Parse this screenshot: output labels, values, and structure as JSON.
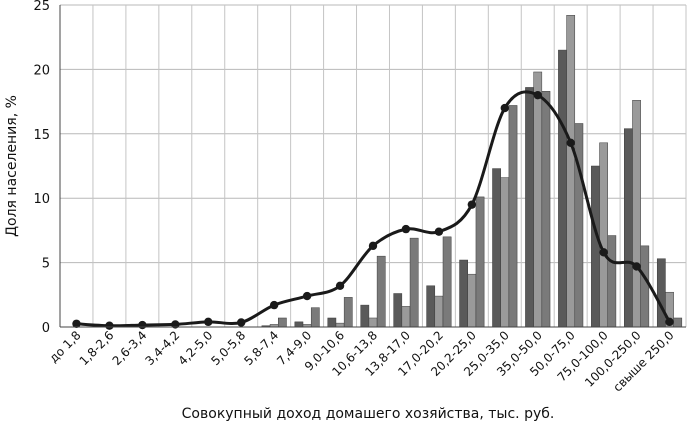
{
  "chart_data": {
    "type": "bar",
    "xlabel": "Совокупный доход домашего хозяйства, тыс. руб.",
    "ylabel": "Доля населения, %",
    "ylim": [
      0,
      25
    ],
    "yticks": [
      "0",
      "5",
      "10",
      "15",
      "20",
      "25"
    ],
    "grid": true,
    "categories": [
      "до 1,8",
      "1,8-2,6",
      "2,6-3,4",
      "3,4-4,2",
      "4,2-5,0",
      "5,0-5,8",
      "5,8-7,4",
      "7,4-9,0",
      "9,0-10,6",
      "10,6-13,8",
      "13,8-17,0",
      "17,0-20,2",
      "20,2-25,0",
      "25,0-35,0",
      "35,0-50,0",
      "50,0-75,0",
      "75,0-100,0",
      "100,0-250,0",
      "свыше 250,0"
    ],
    "series": [
      {
        "type": "bar",
        "color": "#5a5a5a",
        "values": [
          0,
          0,
          0,
          0,
          0,
          0,
          0.1,
          0.4,
          0.7,
          1.7,
          2.6,
          3.2,
          5.2,
          12.3,
          18.6,
          21.5,
          12.5,
          15.4,
          5.3
        ]
      },
      {
        "type": "bar",
        "color": "#9a9a9a",
        "values": [
          0,
          0,
          0,
          0,
          0,
          0,
          0.2,
          0.2,
          0.3,
          0.7,
          1.6,
          2.4,
          4.1,
          11.6,
          19.8,
          24.2,
          14.3,
          17.6,
          2.7
        ]
      },
      {
        "type": "bar",
        "color": "#7a7a7a",
        "values": [
          0,
          0,
          0,
          0,
          0,
          0,
          0.7,
          1.5,
          2.3,
          5.5,
          6.9,
          7.0,
          10.1,
          17.2,
          18.3,
          15.8,
          7.1,
          6.3,
          0.7
        ]
      },
      {
        "type": "line",
        "color": "#1a1a1a",
        "values": [
          0.25,
          0.1,
          0.15,
          0.2,
          0.4,
          0.35,
          1.7,
          2.4,
          3.2,
          6.3,
          7.6,
          7.4,
          9.5,
          17.0,
          18.0,
          14.3,
          5.8,
          4.7,
          0.4
        ]
      }
    ]
  }
}
